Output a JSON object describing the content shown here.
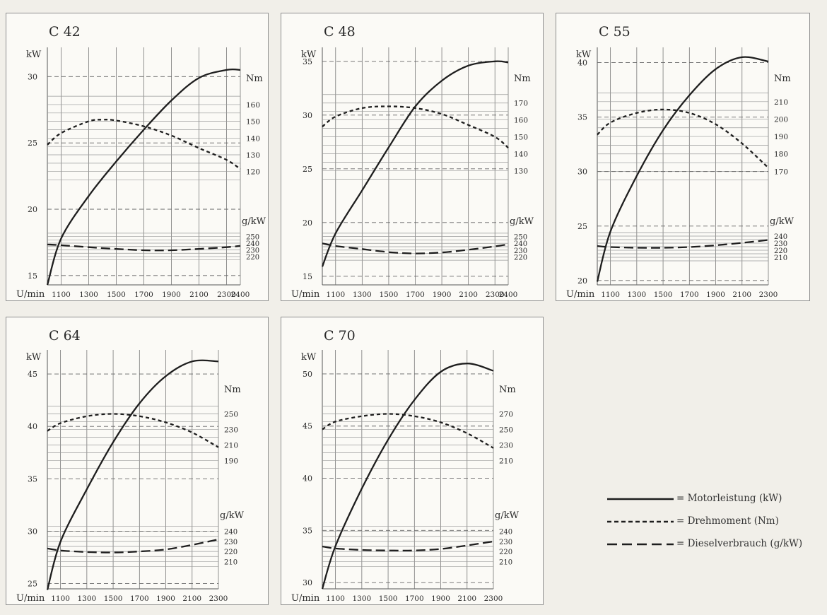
{
  "legend": {
    "power": "= Motorleistung (kW)",
    "torque": "= Drehmoment (Nm)",
    "consumption": "= Dieselverbrauch (g/kW)"
  },
  "chart_data": [
    {
      "type": "line",
      "title": "C 42",
      "xlabel": "U/min",
      "xlim": [
        1000,
        2400
      ],
      "x_ticks": [
        1100,
        1300,
        1500,
        1700,
        1900,
        2100,
        2300,
        2400
      ],
      "kw_axis": {
        "label": "kW",
        "ticks": [
          15,
          20,
          25,
          30
        ],
        "lim": [
          14.3,
          32.2
        ]
      },
      "nm_axis": {
        "label": "Nm",
        "ticks": [
          120,
          130,
          140,
          150,
          160
        ],
        "lim": [
          116.5,
          168
        ]
      },
      "gkw_axis": {
        "label": "g/kW",
        "ticks": [
          220,
          230,
          240,
          250
        ],
        "lim": [
          211.5,
          258
        ]
      },
      "series": [
        {
          "name": "Motorleistung (kW)",
          "axis": "kw",
          "x": [
            1000,
            1100,
            1300,
            1500,
            1700,
            1900,
            2100,
            2300,
            2400
          ],
          "y": [
            14.3,
            17.8,
            21.0,
            23.6,
            26.0,
            28.2,
            29.9,
            30.5,
            30.5
          ]
        },
        {
          "name": "Drehmoment (Nm)",
          "axis": "nm",
          "x": [
            1000,
            1100,
            1300,
            1400,
            1500,
            1700,
            1900,
            2100,
            2300,
            2400
          ],
          "y": [
            136,
            143,
            150,
            151,
            150.5,
            147,
            141.5,
            134,
            127,
            121.5
          ]
        },
        {
          "name": "Dieselverbrauch (g/kW)",
          "axis": "gkw",
          "x": [
            1000,
            1100,
            1300,
            1500,
            1700,
            1900,
            2100,
            2300,
            2400
          ],
          "y": [
            238,
            237,
            234,
            231.5,
            229.5,
            229.5,
            231.5,
            234,
            236
          ]
        }
      ]
    },
    {
      "type": "line",
      "title": "C 48",
      "xlabel": "U/min",
      "xlim": [
        1000,
        2400
      ],
      "x_ticks": [
        1100,
        1300,
        1500,
        1700,
        1900,
        2100,
        2300,
        2400
      ],
      "kw_axis": {
        "label": "kW",
        "ticks": [
          15,
          20,
          25,
          30,
          35
        ],
        "lim": [
          14.2,
          36.3
        ]
      },
      "nm_axis": {
        "label": "Nm",
        "ticks": [
          130,
          140,
          150,
          160,
          170
        ],
        "lim": [
          126,
          177
        ]
      },
      "gkw_axis": {
        "label": "g/kW",
        "ticks": [
          220,
          230,
          240,
          250
        ],
        "lim": [
          212,
          258
        ]
      },
      "series": [
        {
          "name": "Motorleistung (kW)",
          "axis": "kw",
          "x": [
            1000,
            1100,
            1300,
            1500,
            1700,
            1900,
            2100,
            2300,
            2400
          ],
          "y": [
            15.9,
            19.0,
            23.0,
            27.0,
            30.8,
            33.2,
            34.6,
            35.0,
            34.9
          ]
        },
        {
          "name": "Drehmoment (Nm)",
          "axis": "nm",
          "x": [
            1000,
            1100,
            1300,
            1500,
            1700,
            1900,
            2100,
            2300,
            2400
          ],
          "y": [
            156,
            162,
            167,
            168,
            167,
            163.5,
            157,
            150,
            143.5
          ]
        },
        {
          "name": "Dieselverbrauch (g/kW)",
          "axis": "gkw",
          "x": [
            1000,
            1100,
            1300,
            1500,
            1700,
            1900,
            2100,
            2300,
            2400
          ],
          "y": [
            240,
            236,
            231.5,
            227,
            225,
            226.5,
            230.5,
            235.5,
            238.5
          ]
        }
      ]
    },
    {
      "type": "line",
      "title": "C 55",
      "xlabel": "U/min",
      "xlim": [
        1000,
        2300
      ],
      "x_ticks": [
        1100,
        1300,
        1500,
        1700,
        1900,
        2100,
        2300
      ],
      "kw_axis": {
        "label": "kW",
        "ticks": [
          20,
          25,
          30,
          35,
          40
        ],
        "lim": [
          19.6,
          41.4
        ]
      },
      "nm_axis": {
        "label": "Nm",
        "ticks": [
          170,
          180,
          190,
          200,
          210
        ],
        "lim": [
          166.5,
          216
        ]
      },
      "gkw_axis": {
        "label": "g/kW",
        "ticks": [
          210,
          220,
          230,
          240
        ],
        "lim": [
          203,
          247
        ]
      },
      "series": [
        {
          "name": "Motorleistung (kW)",
          "axis": "kw",
          "x": [
            1000,
            1100,
            1300,
            1500,
            1700,
            1900,
            2100,
            2300
          ],
          "y": [
            19.9,
            24.5,
            29.6,
            33.8,
            37.0,
            39.4,
            40.5,
            40.1
          ]
        },
        {
          "name": "Drehmoment (Nm)",
          "axis": "nm",
          "x": [
            1000,
            1100,
            1300,
            1500,
            1700,
            1900,
            2100,
            2300
          ],
          "y": [
            191,
            198,
            203.5,
            205.5,
            203.5,
            197,
            186,
            172
          ]
        },
        {
          "name": "Dieselverbrauch (g/kW)",
          "axis": "gkw",
          "x": [
            1000,
            1100,
            1300,
            1500,
            1700,
            1900,
            2100,
            2300
          ],
          "y": [
            226,
            224.5,
            223.5,
            223.5,
            224.5,
            227,
            230.5,
            234.5
          ]
        }
      ]
    },
    {
      "type": "line",
      "title": "C 64",
      "xlabel": "U/min",
      "xlim": [
        1000,
        2300
      ],
      "x_ticks": [
        1100,
        1300,
        1500,
        1700,
        1900,
        2100,
        2300
      ],
      "kw_axis": {
        "label": "kW",
        "ticks": [
          25,
          30,
          35,
          40,
          45
        ],
        "lim": [
          24.5,
          47.3
        ]
      },
      "nm_axis": {
        "label": "Nm",
        "ticks": [
          190,
          210,
          230,
          250
        ],
        "lim": [
          183,
          265
        ]
      },
      "gkw_axis": {
        "label": "g/kW",
        "ticks": [
          210,
          220,
          230,
          240
        ],
        "lim": [
          204,
          246
        ]
      },
      "series": [
        {
          "name": "Motorleistung (kW)",
          "axis": "kw",
          "x": [
            1000,
            1100,
            1300,
            1500,
            1700,
            1900,
            2100,
            2300
          ],
          "y": [
            24.4,
            29.0,
            34.0,
            38.5,
            42.2,
            44.8,
            46.2,
            46.2
          ]
        },
        {
          "name": "Drehmoment (Nm)",
          "axis": "nm",
          "x": [
            1000,
            1100,
            1300,
            1500,
            1700,
            1900,
            2100,
            2300
          ],
          "y": [
            228,
            238,
            247,
            250,
            247,
            239,
            226,
            207
          ]
        },
        {
          "name": "Dieselverbrauch (g/kW)",
          "axis": "gkw",
          "x": [
            1000,
            1100,
            1300,
            1500,
            1700,
            1900,
            2100,
            2300
          ],
          "y": [
            223,
            221,
            219.5,
            219,
            220,
            222,
            226.5,
            232
          ]
        }
      ]
    },
    {
      "type": "line",
      "title": "C 70",
      "xlabel": "U/min",
      "xlim": [
        1000,
        2300
      ],
      "x_ticks": [
        1100,
        1300,
        1500,
        1700,
        1900,
        2100,
        2300
      ],
      "kw_axis": {
        "label": "kW",
        "ticks": [
          30,
          35,
          40,
          45,
          50
        ],
        "lim": [
          29.4,
          52.3
        ]
      },
      "nm_axis": {
        "label": "Nm",
        "ticks": [
          210,
          230,
          250,
          270
        ],
        "lim": [
          203,
          285
        ]
      },
      "gkw_axis": {
        "label": "g/kW",
        "ticks": [
          210,
          220,
          230,
          240
        ],
        "lim": [
          204,
          246
        ]
      },
      "series": [
        {
          "name": "Motorleistung (kW)",
          "axis": "kw",
          "x": [
            1000,
            1100,
            1300,
            1500,
            1700,
            1900,
            2100,
            2300
          ],
          "y": [
            29.4,
            33.5,
            39.0,
            43.7,
            47.5,
            50.2,
            51.0,
            50.3
          ]
        },
        {
          "name": "Drehmoment (Nm)",
          "axis": "nm",
          "x": [
            1000,
            1100,
            1300,
            1500,
            1700,
            1900,
            2100,
            2300
          ],
          "y": [
            250,
            260,
            267,
            270,
            267,
            259,
            245,
            226
          ]
        },
        {
          "name": "Dieselverbrauch (g/kW)",
          "axis": "gkw",
          "x": [
            1000,
            1100,
            1300,
            1500,
            1700,
            1900,
            2100,
            2300
          ],
          "y": [
            225,
            223,
            221.5,
            221,
            221,
            222.5,
            226,
            230
          ]
        }
      ]
    }
  ]
}
